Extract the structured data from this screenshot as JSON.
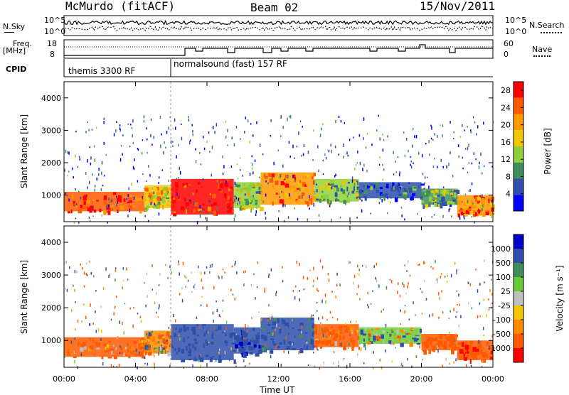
{
  "header": {
    "site": "McMurdo (fitACF)",
    "beam": "Beam 02",
    "date": "15/Nov/2011"
  },
  "strip_labels": {
    "nsky": "N.Sky",
    "nsearch": "N.Search",
    "freq": "Freq.",
    "freq_unit": "[MHz]",
    "nave": "Nave",
    "cpid": "CPID",
    "nsky_ticks": [
      "10^5",
      "10^0"
    ],
    "nsearch_ticks": [
      "10^5",
      "10^0"
    ],
    "freq_ticks": [
      "18",
      "8"
    ],
    "nave_ticks": [
      "60",
      "0"
    ]
  },
  "cpid_segments": [
    {
      "label": "themis 3300 RF",
      "start_hour": 0
    },
    {
      "label": "normalsound (fast) 157 RF",
      "start_hour": 6
    }
  ],
  "colors": {
    "power": [
      "#0000ff",
      "#2e4faa",
      "#3f8f5a",
      "#8fd13c",
      "#f2c600",
      "#ff9a00",
      "#ff5a00",
      "#ff0000"
    ],
    "velocity": [
      "#ff0000",
      "#ff5a00",
      "#ff8c00",
      "#f2c600",
      "#bfbfbf",
      "#66cc33",
      "#3f8f5a",
      "#2e4faa",
      "#0000cc"
    ]
  },
  "chart_data": [
    {
      "type": "heatmap",
      "name": "power",
      "ylabel": "Slant Range [km]",
      "xlabel": "Time UT",
      "xlim": [
        0,
        24
      ],
      "ylim": [
        180,
        4500
      ],
      "x_ticks": [
        "00:00",
        "04:00",
        "08:00",
        "12:00",
        "16:00",
        "20:00",
        "00:00"
      ],
      "y_ticks": [
        1000,
        2000,
        3000,
        4000
      ],
      "colorbar": {
        "label": "Power [dB]",
        "ticks": [
          4,
          8,
          12,
          16,
          20,
          24,
          28
        ],
        "range": [
          0,
          30
        ]
      },
      "regions": [
        {
          "t": [
            0.0,
            4.5
          ],
          "r": [
            500,
            1100
          ],
          "v": 26
        },
        {
          "t": [
            4.5,
            6.0
          ],
          "r": [
            600,
            1300
          ],
          "v": 18
        },
        {
          "t": [
            6.0,
            9.5
          ],
          "r": [
            400,
            1500
          ],
          "v": 27
        },
        {
          "t": [
            9.5,
            11.0
          ],
          "r": [
            600,
            1400
          ],
          "v": 14
        },
        {
          "t": [
            11.0,
            14.0
          ],
          "r": [
            700,
            1700
          ],
          "v": 22
        },
        {
          "t": [
            14.0,
            16.5
          ],
          "r": [
            800,
            1500
          ],
          "v": 12
        },
        {
          "t": [
            16.5,
            20.0
          ],
          "r": [
            900,
            1400
          ],
          "v": 6
        },
        {
          "t": [
            20.0,
            22.0
          ],
          "r": [
            700,
            1200
          ],
          "v": 10
        },
        {
          "t": [
            22.0,
            24.0
          ],
          "r": [
            400,
            1000
          ],
          "v": 22
        }
      ]
    },
    {
      "type": "heatmap",
      "name": "velocity",
      "ylabel": "Slant Range [km]",
      "xlabel": "Time UT",
      "xlim": [
        0,
        24
      ],
      "ylim": [
        180,
        4500
      ],
      "x_ticks": [
        "00:00",
        "04:00",
        "08:00",
        "12:00",
        "16:00",
        "20:00",
        "00:00"
      ],
      "y_ticks": [
        1000,
        2000,
        3000,
        4000
      ],
      "colorbar": {
        "label": "Velocity [m s⁻¹]",
        "ticks": [
          "1000",
          "500",
          "100",
          "25",
          "-25",
          "-100",
          "-500",
          "-1000"
        ]
      },
      "regions": [
        {
          "t": [
            0.0,
            4.5
          ],
          "r": [
            500,
            1100
          ],
          "v": -150
        },
        {
          "t": [
            4.5,
            6.0
          ],
          "r": [
            600,
            1300
          ],
          "v": -50
        },
        {
          "t": [
            6.0,
            9.5
          ],
          "r": [
            400,
            1500
          ],
          "v": 300
        },
        {
          "t": [
            9.5,
            11.0
          ],
          "r": [
            600,
            1400
          ],
          "v": 400
        },
        {
          "t": [
            11.0,
            14.0
          ],
          "r": [
            700,
            1700
          ],
          "v": 250
        },
        {
          "t": [
            14.0,
            16.5
          ],
          "r": [
            800,
            1500
          ],
          "v": -200
        },
        {
          "t": [
            16.5,
            20.0
          ],
          "r": [
            900,
            1400
          ],
          "v": 50
        },
        {
          "t": [
            20.0,
            22.0
          ],
          "r": [
            700,
            1200
          ],
          "v": -300
        },
        {
          "t": [
            22.0,
            24.0
          ],
          "r": [
            400,
            1000
          ],
          "v": -400
        }
      ]
    }
  ]
}
